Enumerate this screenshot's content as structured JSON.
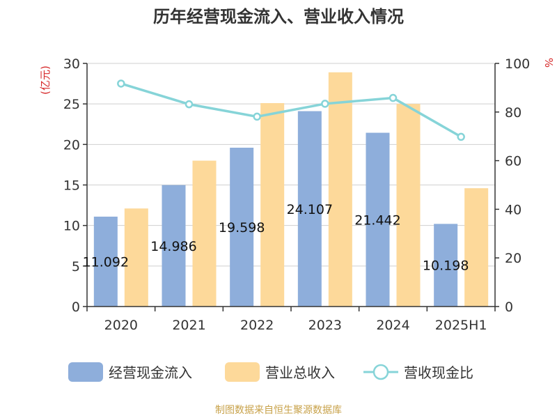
{
  "chart_data": {
    "type": "bar",
    "title": "历年经营现金流入、营业收入情况",
    "categories": [
      "2020",
      "2021",
      "2022",
      "2023",
      "2024",
      "2025H1"
    ],
    "series": [
      {
        "name": "经营现金流入",
        "kind": "bar",
        "axis": "left",
        "color": "#8eaedb",
        "values": [
          11.092,
          14.986,
          19.598,
          24.107,
          21.442,
          10.198
        ],
        "labels": [
          "11.092",
          "14.986",
          "19.598",
          "24.107",
          "21.442",
          "10.198"
        ]
      },
      {
        "name": "营业总收入",
        "kind": "bar",
        "axis": "left",
        "color": "#fdd99a",
        "values": [
          12.1,
          18.0,
          25.1,
          28.9,
          25.0,
          14.6
        ]
      },
      {
        "name": "营收现金比",
        "kind": "line",
        "axis": "right",
        "color": "#86d4d8",
        "values": [
          91.7,
          83.2,
          78.1,
          83.4,
          85.8,
          69.8
        ]
      }
    ],
    "y_left": {
      "label": "(亿元)",
      "ylim": [
        0,
        30
      ],
      "ticks": [
        "0",
        "5",
        "10",
        "15",
        "20",
        "25",
        "30"
      ]
    },
    "y_right": {
      "label": "%",
      "ylim": [
        0,
        100
      ],
      "ticks": [
        "0",
        "20",
        "40",
        "60",
        "80",
        "100"
      ]
    },
    "grid": true,
    "legend_position": "bottom"
  },
  "footer": {
    "source": "制图数据来自恒生聚源数据库"
  }
}
